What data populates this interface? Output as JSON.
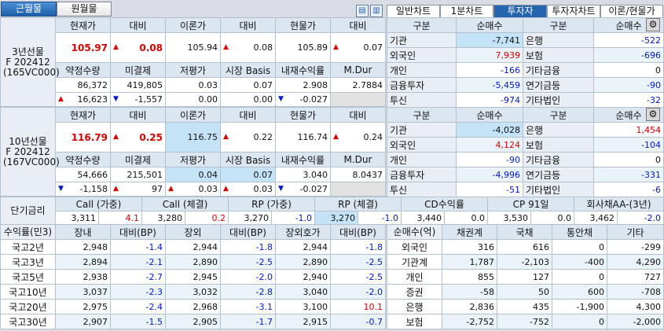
{
  "tabs": {
    "near": "근월물",
    "far": "원월물"
  },
  "right_tabs": [
    "일반차트",
    "1분차트",
    "투자자",
    "투자자차트",
    "이론/현물가"
  ],
  "futures": [
    {
      "label": [
        "3년선물",
        "F 202412",
        "(165VC000)"
      ],
      "h1": [
        "현재가",
        "대비",
        "이론가",
        "대비",
        "현물가",
        "대비"
      ],
      "r1": [
        {
          "v": "105.97",
          "c": "red",
          "b": 1
        },
        {
          "v": "0.08",
          "c": "red",
          "b": 1,
          "a": "up"
        },
        {
          "v": "105.94"
        },
        {
          "v": "0.08",
          "a": "up"
        },
        {
          "v": "105.89"
        },
        {
          "v": "0.07",
          "a": "up"
        }
      ],
      "h2": [
        "약정수량",
        "미결제",
        "저평가",
        "시장 Basis",
        "내재수익률",
        "M.Dur"
      ],
      "r2": [
        {
          "v": "86,372"
        },
        {
          "v": "419,805"
        },
        {
          "v": "0.03"
        },
        {
          "v": "0.07"
        },
        {
          "v": "2.908"
        },
        {
          "v": "2.7884"
        }
      ],
      "r3": [
        {
          "v": "16,623",
          "a": "up"
        },
        {
          "v": "-1,557",
          "a": "dn"
        },
        {
          "v": "0.00"
        },
        {
          "v": "0.00"
        },
        {
          "v": "-0.027",
          "a": "dn"
        },
        {
          "v": "",
          "g": 1
        }
      ],
      "inv_head": [
        "구분",
        "순매수",
        "구분",
        "순매수"
      ],
      "inv": [
        [
          "기관",
          "-7,741",
          "",
          "은행",
          "-522",
          "blue"
        ],
        [
          "외국인",
          "7,939",
          "red",
          "보험",
          "-696",
          "blue"
        ],
        [
          "개인",
          "-166",
          "blue",
          "기타금융",
          "0",
          ""
        ],
        [
          "금융투자",
          "-5,459",
          "blue",
          "연기금등",
          "-90",
          "blue"
        ],
        [
          "투신",
          "-974",
          "blue",
          "기타법인",
          "-32",
          "blue"
        ]
      ]
    },
    {
      "label": [
        "10년선물",
        "F 202412",
        "(167VC000)"
      ],
      "h1": [
        "현재가",
        "대비",
        "이론가",
        "대비",
        "현물가",
        "대비"
      ],
      "r1": [
        {
          "v": "116.79",
          "c": "red",
          "b": 1
        },
        {
          "v": "0.25",
          "c": "red",
          "b": 1,
          "a": "up"
        },
        {
          "v": "116.75",
          "hl": 1
        },
        {
          "v": "0.22",
          "a": "up"
        },
        {
          "v": "116.74"
        },
        {
          "v": "0.24",
          "a": "up"
        }
      ],
      "h2": [
        "약정수량",
        "미결제",
        "저평가",
        "시장 Basis",
        "내재수익률",
        "M.Dur"
      ],
      "r2": [
        {
          "v": "54,666"
        },
        {
          "v": "215,501"
        },
        {
          "v": "0.04",
          "hl": 1
        },
        {
          "v": "0.07",
          "hl": 1
        },
        {
          "v": "3.040"
        },
        {
          "v": "8.0437"
        }
      ],
      "r3": [
        {
          "v": "-1,158",
          "a": "dn"
        },
        {
          "v": "97",
          "a": "up"
        },
        {
          "v": "0.03",
          "a": "up"
        },
        {
          "v": "0.03",
          "a": "up"
        },
        {
          "v": "-0.027",
          "a": "dn"
        },
        {
          "v": "",
          "g": 1
        }
      ],
      "inv_head": [
        "구분",
        "순매수",
        "구분",
        "순매수"
      ],
      "inv": [
        [
          "기관",
          "-4,028",
          "",
          "은행",
          "1,454",
          "red"
        ],
        [
          "외국인",
          "4,124",
          "red",
          "보험",
          "-104",
          "blue"
        ],
        [
          "개인",
          "-90",
          "blue",
          "기타금융",
          "0",
          ""
        ],
        [
          "금융투자",
          "-4,996",
          "blue",
          "연기금등",
          "-331",
          "blue"
        ],
        [
          "투신",
          "-51",
          "blue",
          "기타법인",
          "-6",
          "blue"
        ]
      ]
    }
  ],
  "short_rates": {
    "label": "단기금리",
    "heads": [
      "Call (가중)",
      "Call (체결)",
      "RP (가중)",
      "RP (체결)",
      "CD수익률",
      "CP 91일",
      "회사채AA-(3년)"
    ],
    "values": [
      [
        "3,311",
        "4.1",
        "red"
      ],
      [
        "3,280",
        "0.2",
        "red"
      ],
      [
        "3,270",
        "-1.0",
        "blue"
      ],
      [
        "3,270",
        "-1.0",
        "blue"
      ],
      [
        "3,440",
        "0.0",
        ""
      ],
      [
        "3,530",
        "0.0",
        ""
      ],
      [
        "3,462",
        "-2.0",
        "blue"
      ]
    ]
  },
  "yields": {
    "heads": [
      "수익률(민3)",
      "장내",
      "대비(BP)",
      "장외",
      "대비(BP)",
      "장외호가",
      "대비(BP)"
    ],
    "rows": [
      [
        "국고2년",
        "2,948",
        "-1.4",
        "2,944",
        "-1.8",
        "2,944",
        "-1.8"
      ],
      [
        "국고3년",
        "2,894",
        "-2.1",
        "2,890",
        "-2.5",
        "2,890",
        "-2.5"
      ],
      [
        "국고5년",
        "2,938",
        "-2.7",
        "2,945",
        "-2.0",
        "2,940",
        "-2.5"
      ],
      [
        "국고10년",
        "3,037",
        "-2.3",
        "3,032",
        "-2.8",
        "3,040",
        "-2.0"
      ],
      [
        "국고20년",
        "2,975",
        "-2.4",
        "2,968",
        "-3.1",
        "3,100",
        "10.1"
      ],
      [
        "국고30년",
        "2,907",
        "-1.5",
        "2,905",
        "-1.7",
        "2,915",
        "-0.7"
      ]
    ]
  },
  "net_buy": {
    "heads": [
      "순매수(억)",
      "채권계",
      "국채",
      "통안채",
      "기타"
    ],
    "rows": [
      [
        "외국인",
        "316",
        "616",
        "0",
        "-299"
      ],
      [
        "기관계",
        "1,787",
        "-2,103",
        "-400",
        "4,290"
      ],
      [
        "개인",
        "855",
        "127",
        "0",
        "727"
      ],
      [
        "증권",
        "-58",
        "50",
        "600",
        "-708"
      ],
      [
        "은행",
        "2,836",
        "435",
        "-1,900",
        "4,300"
      ],
      [
        "보험",
        "-2,752",
        "-752",
        "0",
        "-2,000"
      ]
    ]
  },
  "colors": {
    "up": "#d40000",
    "down": "#0018c8",
    "accent": "#2565ae",
    "header": "#dce6f1"
  }
}
